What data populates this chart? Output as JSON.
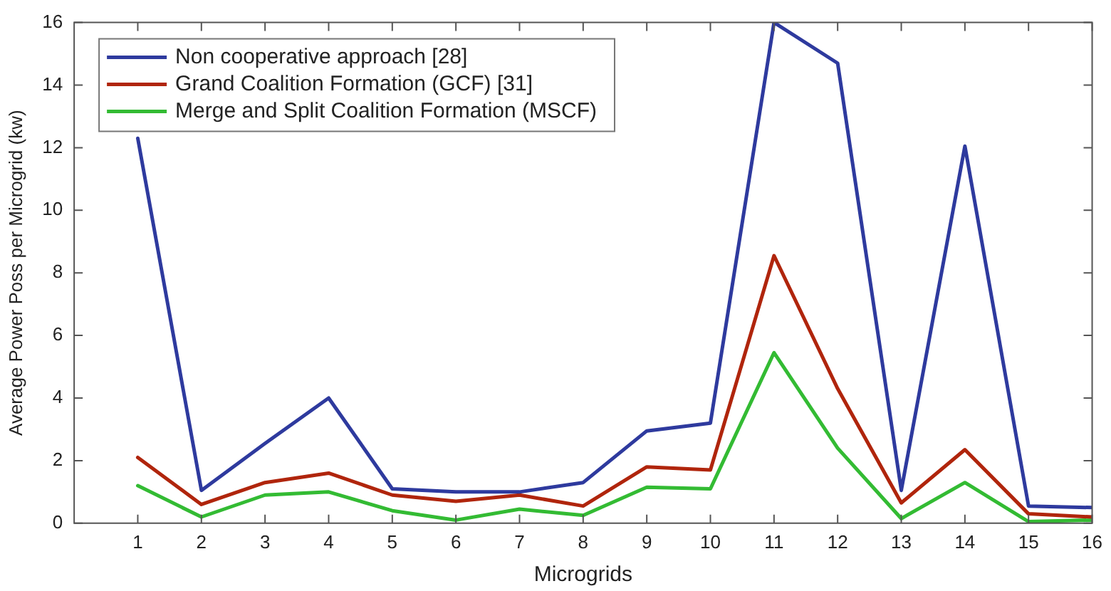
{
  "chart_data": {
    "type": "line",
    "xlabel": "Microgrids",
    "ylabel": "Average Power Poss per Microgrid (kw)",
    "x": [
      1,
      2,
      3,
      4,
      5,
      6,
      7,
      8,
      9,
      10,
      11,
      12,
      13,
      14,
      15,
      16
    ],
    "xlim": [
      0,
      16
    ],
    "xticks": [
      1,
      2,
      3,
      4,
      5,
      6,
      7,
      8,
      9,
      10,
      11,
      12,
      13,
      14,
      15,
      16
    ],
    "ylim": [
      0,
      16
    ],
    "yticks": [
      0,
      2,
      4,
      6,
      8,
      10,
      12,
      14,
      16
    ],
    "series": [
      {
        "name": "Non cooperative approach [28]",
        "color": "#2e3a9e",
        "values": [
          12.3,
          1.05,
          2.55,
          4.0,
          1.1,
          1.0,
          1.0,
          1.3,
          2.95,
          3.2,
          16,
          14.7,
          1.05,
          12.05,
          0.55,
          0.5
        ]
      },
      {
        "name": "Grand Coalition Formation (GCF) [31]",
        "color": "#b0250c",
        "values": [
          2.1,
          0.6,
          1.3,
          1.6,
          0.9,
          0.7,
          0.9,
          0.55,
          1.8,
          1.7,
          8.55,
          4.3,
          0.65,
          2.35,
          0.3,
          0.2
        ]
      },
      {
        "name": "Merge and Split Coalition Formation (MSCF)",
        "color": "#33bb33",
        "values": [
          1.2,
          0.2,
          0.9,
          1.0,
          0.4,
          0.1,
          0.45,
          0.25,
          1.15,
          1.1,
          5.45,
          2.4,
          0.15,
          1.3,
          0.05,
          0.1
        ]
      }
    ],
    "legend": "top left",
    "grid": false,
    "marker": "none",
    "line_style": "solid"
  }
}
